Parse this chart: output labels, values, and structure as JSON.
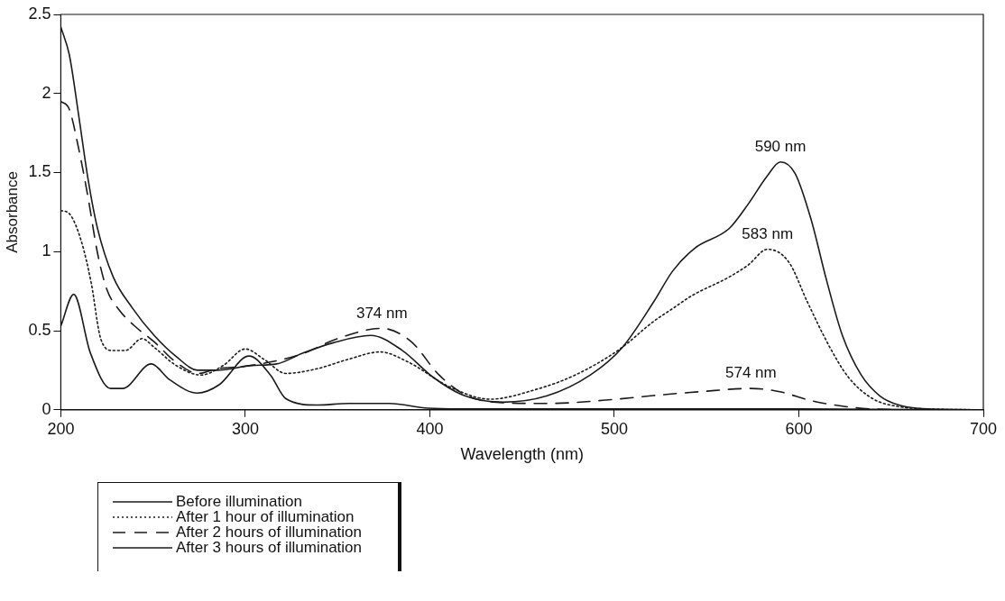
{
  "chart_data": {
    "type": "line",
    "xlabel": "Wavelength (nm)",
    "ylabel": "Absorbance",
    "xlim": [
      200,
      700
    ],
    "xticks": [
      200,
      300,
      400,
      500,
      600,
      700
    ],
    "ylim": [
      0,
      2.5
    ],
    "yticks": [
      0,
      0.5,
      1,
      1.5,
      2,
      2.5
    ],
    "grid": false,
    "legend": "bottom left",
    "marker": "none",
    "annotations": [
      {
        "text": "374 nm",
        "x": 374,
        "y": 0.515
      },
      {
        "text": "590 nm",
        "x": 590,
        "y": 1.567
      },
      {
        "text": "583 nm",
        "x": 583,
        "y": 1.015
      },
      {
        "text": "574 nm",
        "x": 574,
        "y": 0.135
      }
    ],
    "series": [
      {
        "name": "Before illumination",
        "color": "#1a1a1a",
        "line_style": "solid",
        "x": [
          200,
          207,
          216,
          227,
          233.5,
          249,
          259,
          274,
          286,
          302,
          313.6,
          322,
          339,
          356,
          378,
          399,
          420,
          450,
          500,
          600,
          700
        ],
        "values": [
          0.53,
          0.73,
          0.36,
          0.135,
          0.135,
          0.29,
          0.19,
          0.106,
          0.16,
          0.34,
          0.22,
          0.07,
          0.03,
          0.04,
          0.04,
          0.01,
          0.005,
          0.005,
          0.005,
          0.005,
          0
        ]
      },
      {
        "name": "After 1 hour of illumination",
        "color": "#1a1a1a",
        "line_style": "dotted",
        "x": [
          200,
          204.6,
          211,
          216.5,
          221.6,
          228,
          235,
          244,
          250.6,
          262.5,
          276,
          288,
          300,
          310,
          322,
          339,
          356,
          373,
          388.6,
          410.5,
          432.8,
          456.5,
          478.8,
          502.5,
          521.4,
          531.6,
          541.8,
          562.3,
          572.5,
          583,
          594.5,
          604.7,
          616.8,
          627,
          640.5,
          654.3,
          670,
          700
        ],
        "values": [
          1.26,
          1.24,
          1.07,
          0.8,
          0.45,
          0.375,
          0.375,
          0.45,
          0.395,
          0.28,
          0.22,
          0.28,
          0.385,
          0.32,
          0.23,
          0.26,
          0.32,
          0.366,
          0.3,
          0.146,
          0.067,
          0.125,
          0.22,
          0.38,
          0.56,
          0.64,
          0.72,
          0.84,
          0.915,
          1.015,
          0.935,
          0.68,
          0.395,
          0.204,
          0.067,
          0.02,
          0.005,
          0
        ]
      },
      {
        "name": "After 2 hours of illumination",
        "color": "#1a1a1a",
        "line_style": "dashed",
        "x": [
          200,
          204.6,
          209.7,
          214.8,
          219.9,
          225,
          232,
          240,
          250.6,
          262.5,
          274.4,
          284.7,
          300,
          330,
          350,
          374,
          390,
          405,
          420,
          440,
          463.5,
          501,
          521,
          547,
          574,
          589,
          606.6,
          623.6,
          640,
          670,
          700
        ],
        "values": [
          1.95,
          1.9,
          1.65,
          1.34,
          0.99,
          0.76,
          0.626,
          0.53,
          0.43,
          0.3,
          0.23,
          0.26,
          0.275,
          0.35,
          0.45,
          0.515,
          0.43,
          0.22,
          0.09,
          0.045,
          0.04,
          0.067,
          0.09,
          0.115,
          0.135,
          0.116,
          0.058,
          0.023,
          0.005,
          0,
          0
        ]
      },
      {
        "name": "After 3 hours of illumination",
        "color": "#1a1a1a",
        "line_style": "solid",
        "x": [
          200,
          204.6,
          209.7,
          214.8,
          219.9,
          228.4,
          238.7,
          250.6,
          262.5,
          274.4,
          284.7,
          303.4,
          317,
          330.7,
          347.7,
          368,
          385,
          402,
          419,
          439.6,
          463.5,
          487,
          504.4,
          521.4,
          531.6,
          543.4,
          562.3,
          572.5,
          582.7,
          590,
          598,
          606.6,
          615,
          623.6,
          633.8,
          644,
          654.3,
          670,
          700
        ],
        "values": [
          2.42,
          2.245,
          1.86,
          1.455,
          1.146,
          0.84,
          0.645,
          0.47,
          0.337,
          0.25,
          0.25,
          0.28,
          0.29,
          0.356,
          0.424,
          0.47,
          0.376,
          0.204,
          0.088,
          0.048,
          0.088,
          0.22,
          0.395,
          0.684,
          0.877,
          1.02,
          1.147,
          1.3,
          1.476,
          1.567,
          1.494,
          1.205,
          0.82,
          0.47,
          0.22,
          0.087,
          0.03,
          0.005,
          0
        ]
      }
    ]
  }
}
